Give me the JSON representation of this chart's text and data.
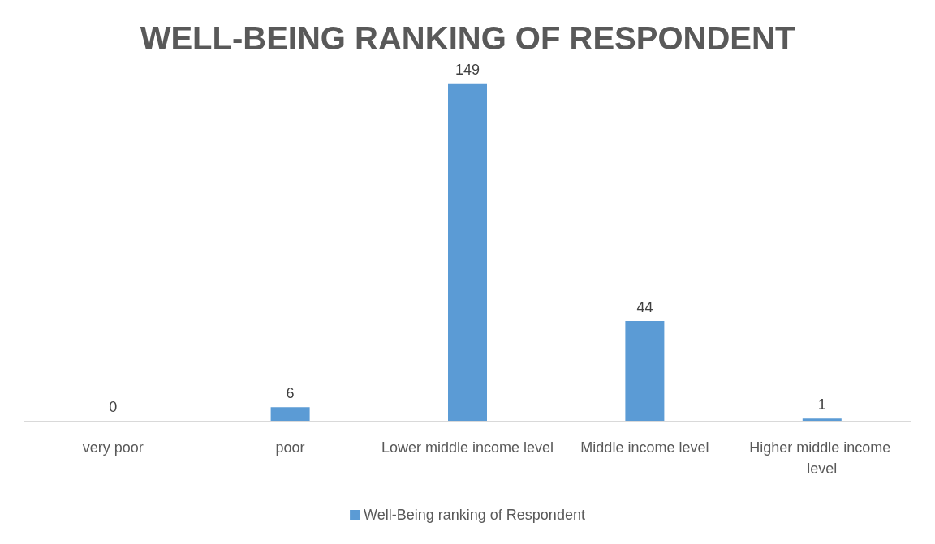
{
  "chart_data": {
    "type": "bar",
    "title": "WELL-BEING RANKING OF RESPONDENT",
    "categories": [
      "very poor",
      "poor",
      "Lower middle income level",
      "Middle income level",
      "Higher middle income level"
    ],
    "series": [
      {
        "name": "Well-Being ranking of Respondent",
        "color": "#5b9bd5",
        "values": [
          0,
          6,
          149,
          44,
          1
        ]
      }
    ],
    "data_labels": true,
    "grid": false,
    "legend": "bottom"
  }
}
